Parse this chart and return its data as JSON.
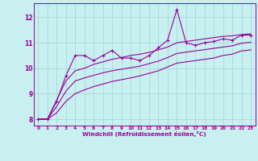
{
  "xlabel": "Windchill (Refroidissement éolien,°C)",
  "background_color": "#c8f0f0",
  "grid_color": "#a8d8d8",
  "line_color": "#990099",
  "x_values": [
    0,
    1,
    2,
    3,
    4,
    5,
    6,
    7,
    8,
    9,
    10,
    11,
    12,
    13,
    14,
    15,
    16,
    17,
    18,
    19,
    20,
    21,
    22,
    23
  ],
  "y_main": [
    8.0,
    8.0,
    8.7,
    9.7,
    10.5,
    10.5,
    10.3,
    10.5,
    10.7,
    10.4,
    10.4,
    10.3,
    10.5,
    10.8,
    11.1,
    12.3,
    11.0,
    10.9,
    11.0,
    11.05,
    11.15,
    11.1,
    11.3,
    11.3
  ],
  "y_upper": [
    8.0,
    8.0,
    8.75,
    9.5,
    9.9,
    10.0,
    10.15,
    10.25,
    10.35,
    10.42,
    10.5,
    10.55,
    10.62,
    10.72,
    10.83,
    11.0,
    11.05,
    11.1,
    11.15,
    11.2,
    11.25,
    11.27,
    11.32,
    11.35
  ],
  "y_mid": [
    8.0,
    8.0,
    8.5,
    9.1,
    9.5,
    9.62,
    9.72,
    9.82,
    9.9,
    9.96,
    10.02,
    10.08,
    10.18,
    10.28,
    10.42,
    10.58,
    10.63,
    10.68,
    10.73,
    10.78,
    10.83,
    10.88,
    10.98,
    11.02
  ],
  "y_lower": [
    8.0,
    8.0,
    8.25,
    8.7,
    9.0,
    9.15,
    9.28,
    9.38,
    9.48,
    9.55,
    9.62,
    9.7,
    9.8,
    9.9,
    10.05,
    10.2,
    10.25,
    10.3,
    10.35,
    10.4,
    10.5,
    10.55,
    10.68,
    10.72
  ],
  "ylim": [
    7.75,
    12.55
  ],
  "yticks": [
    8,
    9,
    10,
    11,
    12
  ],
  "xlim": [
    -0.5,
    23.5
  ]
}
